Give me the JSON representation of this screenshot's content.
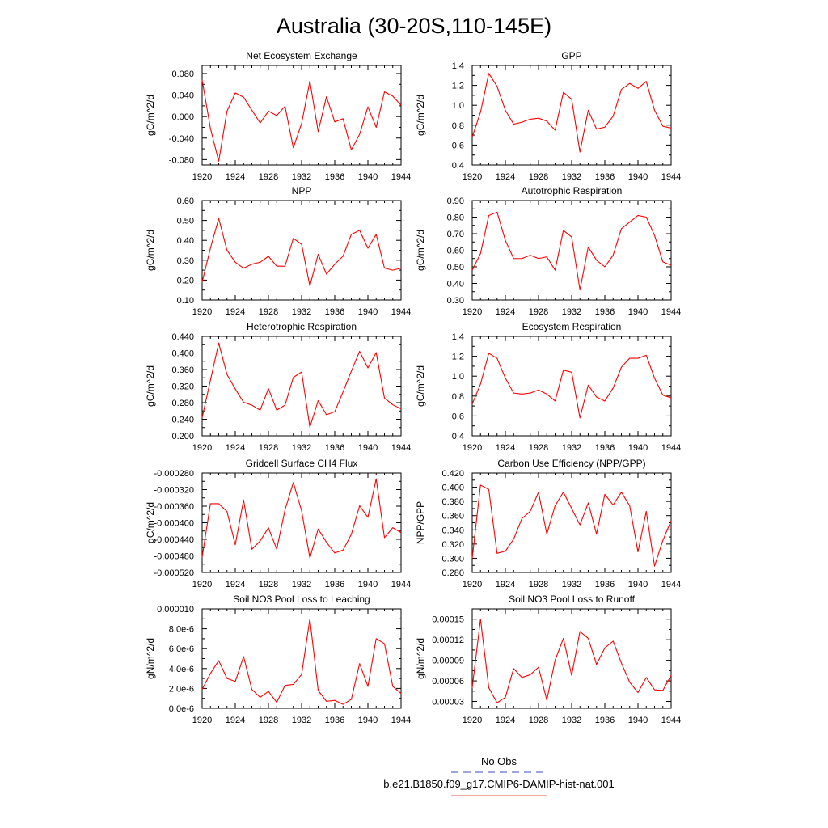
{
  "title": "Australia (30-20S,110-145E)",
  "legend": {
    "entries": [
      {
        "label": "No Obs",
        "color": "#3b4cc0",
        "dash": true
      },
      {
        "label": "b.e21.B1850.f09_g17.CMIP6-DAMIP-hist-nat.001",
        "color": "#e8504a",
        "dash": false
      }
    ]
  },
  "series_color": "#ff0000",
  "chart_data": [
    {
      "type": "line",
      "title": "Net Ecosystem Exchange",
      "ylabel": "gC/m^2/d",
      "x": [
        1920,
        1921,
        1922,
        1923,
        1924,
        1925,
        1926,
        1927,
        1928,
        1929,
        1930,
        1931,
        1932,
        1933,
        1934,
        1935,
        1936,
        1937,
        1938,
        1939,
        1940,
        1941,
        1942,
        1943,
        1944
      ],
      "values": [
        0.068,
        -0.022,
        -0.083,
        0.01,
        0.044,
        0.036,
        0.012,
        -0.012,
        0.01,
        0.002,
        0.019,
        -0.058,
        -0.013,
        0.066,
        -0.028,
        0.037,
        -0.01,
        -0.004,
        -0.062,
        -0.033,
        0.018,
        -0.02,
        0.046,
        0.038,
        0.021
      ],
      "xlim": [
        1920,
        1944
      ],
      "ylim": [
        -0.09,
        0.095
      ],
      "xticks": [
        1920,
        1924,
        1928,
        1932,
        1936,
        1940,
        1944
      ],
      "yticks": [
        -0.08,
        -0.04,
        0,
        0.04,
        0.08
      ],
      "ytick_labels": [
        "-0.080",
        "-0.040",
        "0.000",
        "0.040",
        "0.080"
      ]
    },
    {
      "type": "line",
      "title": "GPP",
      "ylabel": "gC/m^2/d",
      "x": [
        1920,
        1921,
        1922,
        1923,
        1924,
        1925,
        1926,
        1927,
        1928,
        1929,
        1930,
        1931,
        1932,
        1933,
        1934,
        1935,
        1936,
        1937,
        1938,
        1939,
        1940,
        1941,
        1942,
        1943,
        1944
      ],
      "values": [
        0.68,
        0.93,
        1.32,
        1.19,
        0.95,
        0.81,
        0.83,
        0.86,
        0.87,
        0.84,
        0.75,
        1.13,
        1.06,
        0.53,
        0.95,
        0.76,
        0.78,
        0.89,
        1.16,
        1.22,
        1.17,
        1.24,
        0.95,
        0.79,
        0.77
      ],
      "xlim": [
        1920,
        1944
      ],
      "ylim": [
        0.4,
        1.4
      ],
      "xticks": [
        1920,
        1924,
        1928,
        1932,
        1936,
        1940,
        1944
      ],
      "yticks": [
        0.4,
        0.6,
        0.8,
        1.0,
        1.2,
        1.4
      ],
      "ytick_labels": [
        "0.4",
        "0.6",
        "0.8",
        "1.0",
        "1.2",
        "1.4"
      ]
    },
    {
      "type": "line",
      "title": "NPP",
      "ylabel": "gC/m^2/d",
      "x": [
        1920,
        1921,
        1922,
        1923,
        1924,
        1925,
        1926,
        1927,
        1928,
        1929,
        1930,
        1931,
        1932,
        1933,
        1934,
        1935,
        1936,
        1937,
        1938,
        1939,
        1940,
        1941,
        1942,
        1943,
        1944
      ],
      "values": [
        0.19,
        0.36,
        0.51,
        0.35,
        0.29,
        0.26,
        0.28,
        0.29,
        0.32,
        0.27,
        0.27,
        0.41,
        0.38,
        0.17,
        0.33,
        0.23,
        0.28,
        0.32,
        0.43,
        0.45,
        0.36,
        0.43,
        0.26,
        0.25,
        0.26
      ],
      "xlim": [
        1920,
        1944
      ],
      "ylim": [
        0.1,
        0.6
      ],
      "xticks": [
        1920,
        1924,
        1928,
        1932,
        1936,
        1940,
        1944
      ],
      "yticks": [
        0.1,
        0.2,
        0.3,
        0.4,
        0.5,
        0.6
      ],
      "ytick_labels": [
        "0.10",
        "0.20",
        "0.30",
        "0.40",
        "0.50",
        "0.60"
      ]
    },
    {
      "type": "line",
      "title": "Autotrophic Respiration",
      "ylabel": "gC/m^2/d",
      "x": [
        1920,
        1921,
        1922,
        1923,
        1924,
        1925,
        1926,
        1927,
        1928,
        1929,
        1930,
        1931,
        1932,
        1933,
        1934,
        1935,
        1936,
        1937,
        1938,
        1939,
        1940,
        1941,
        1942,
        1943,
        1944
      ],
      "values": [
        0.48,
        0.58,
        0.81,
        0.83,
        0.66,
        0.55,
        0.55,
        0.57,
        0.55,
        0.56,
        0.48,
        0.72,
        0.68,
        0.36,
        0.62,
        0.54,
        0.5,
        0.57,
        0.73,
        0.77,
        0.81,
        0.8,
        0.69,
        0.53,
        0.51
      ],
      "xlim": [
        1920,
        1944
      ],
      "ylim": [
        0.3,
        0.9
      ],
      "xticks": [
        1920,
        1924,
        1928,
        1932,
        1936,
        1940,
        1944
      ],
      "yticks": [
        0.3,
        0.4,
        0.5,
        0.6,
        0.7,
        0.8,
        0.9
      ],
      "ytick_labels": [
        "0.30",
        "0.40",
        "0.50",
        "0.60",
        "0.70",
        "0.80",
        "0.90"
      ]
    },
    {
      "type": "line",
      "title": "Heterotrophic Respiration",
      "ylabel": "gC/m^2/d",
      "x": [
        1920,
        1921,
        1922,
        1923,
        1924,
        1925,
        1926,
        1927,
        1928,
        1929,
        1930,
        1931,
        1932,
        1933,
        1934,
        1935,
        1936,
        1937,
        1938,
        1939,
        1940,
        1941,
        1942,
        1943,
        1944
      ],
      "values": [
        0.244,
        0.334,
        0.424,
        0.348,
        0.313,
        0.281,
        0.274,
        0.262,
        0.314,
        0.262,
        0.274,
        0.341,
        0.354,
        0.221,
        0.285,
        0.251,
        0.258,
        0.306,
        0.356,
        0.404,
        0.364,
        0.401,
        0.291,
        0.275,
        0.265
      ],
      "xlim": [
        1920,
        1944
      ],
      "ylim": [
        0.2,
        0.44
      ],
      "xticks": [
        1920,
        1924,
        1928,
        1932,
        1936,
        1940,
        1944
      ],
      "yticks": [
        0.2,
        0.24,
        0.28,
        0.32,
        0.36,
        0.4,
        0.44
      ],
      "ytick_labels": [
        "0.200",
        "0.240",
        "0.280",
        "0.320",
        "0.360",
        "0.400",
        "0.440"
      ]
    },
    {
      "type": "line",
      "title": "Ecosystem Respiration",
      "ylabel": "gC/m^2/d",
      "x": [
        1920,
        1921,
        1922,
        1923,
        1924,
        1925,
        1926,
        1927,
        1928,
        1929,
        1930,
        1931,
        1932,
        1933,
        1934,
        1935,
        1936,
        1937,
        1938,
        1939,
        1940,
        1941,
        1942,
        1943,
        1944
      ],
      "values": [
        0.72,
        0.92,
        1.23,
        1.18,
        0.98,
        0.83,
        0.82,
        0.83,
        0.86,
        0.82,
        0.75,
        1.06,
        1.04,
        0.58,
        0.91,
        0.79,
        0.75,
        0.88,
        1.09,
        1.18,
        1.18,
        1.21,
        0.98,
        0.81,
        0.78
      ],
      "xlim": [
        1920,
        1944
      ],
      "ylim": [
        0.4,
        1.4
      ],
      "xticks": [
        1920,
        1924,
        1928,
        1932,
        1936,
        1940,
        1944
      ],
      "yticks": [
        0.4,
        0.6,
        0.8,
        1.0,
        1.2,
        1.4
      ],
      "ytick_labels": [
        "0.4",
        "0.6",
        "0.8",
        "1.0",
        "1.2",
        "1.4"
      ]
    },
    {
      "type": "line",
      "title": "Gridcell Surface CH4 Flux",
      "ylabel": "gC/m^2/d",
      "x": [
        1920,
        1921,
        1922,
        1923,
        1924,
        1925,
        1926,
        1927,
        1928,
        1929,
        1930,
        1931,
        1932,
        1933,
        1934,
        1935,
        1936,
        1937,
        1938,
        1939,
        1940,
        1941,
        1942,
        1943,
        1944
      ],
      "values": [
        -0.000483,
        -0.000354,
        -0.000354,
        -0.000373,
        -0.000453,
        -0.000345,
        -0.000464,
        -0.000444,
        -0.000412,
        -0.000464,
        -0.000369,
        -0.000303,
        -0.000371,
        -0.000485,
        -0.000415,
        -0.000447,
        -0.000473,
        -0.000466,
        -0.000428,
        -0.000359,
        -0.000387,
        -0.000294,
        -0.000436,
        -0.000412,
        -0.000424
      ],
      "xlim": [
        1920,
        1944
      ],
      "ylim": [
        -0.00052,
        -0.00028
      ],
      "xticks": [
        1920,
        1924,
        1928,
        1932,
        1936,
        1940,
        1944
      ],
      "yticks": [
        -0.00052,
        -0.00048,
        -0.00044,
        -0.0004,
        -0.00036,
        -0.00032,
        -0.00028
      ],
      "ytick_labels": [
        "-0.000520",
        "-0.000480",
        "-0.000440",
        "-0.000400",
        "-0.000360",
        "-0.000320",
        "-0.000280"
      ]
    },
    {
      "type": "line",
      "title": "Carbon Use Efficiency (NPP/GPP)",
      "ylabel": "NPP/GPP",
      "x": [
        1920,
        1921,
        1922,
        1923,
        1924,
        1925,
        1926,
        1927,
        1928,
        1929,
        1930,
        1931,
        1932,
        1933,
        1934,
        1935,
        1936,
        1937,
        1938,
        1939,
        1940,
        1941,
        1942,
        1943,
        1944
      ],
      "values": [
        0.3,
        0.403,
        0.397,
        0.307,
        0.31,
        0.327,
        0.356,
        0.366,
        0.393,
        0.334,
        0.374,
        0.393,
        0.37,
        0.347,
        0.378,
        0.334,
        0.39,
        0.375,
        0.393,
        0.374,
        0.309,
        0.366,
        0.289,
        0.325,
        0.353
      ],
      "xlim": [
        1920,
        1944
      ],
      "ylim": [
        0.28,
        0.42
      ],
      "xticks": [
        1920,
        1924,
        1928,
        1932,
        1936,
        1940,
        1944
      ],
      "yticks": [
        0.28,
        0.3,
        0.32,
        0.34,
        0.36,
        0.38,
        0.4,
        0.42
      ],
      "ytick_labels": [
        "0.280",
        "0.300",
        "0.320",
        "0.340",
        "0.360",
        "0.380",
        "0.400",
        "0.420"
      ]
    },
    {
      "type": "line",
      "title": "Soil NO3 Pool Loss to Leaching",
      "ylabel": "gN/m^2/d",
      "x": [
        1920,
        1921,
        1922,
        1923,
        1924,
        1925,
        1926,
        1927,
        1928,
        1929,
        1930,
        1931,
        1932,
        1933,
        1934,
        1935,
        1936,
        1937,
        1938,
        1939,
        1940,
        1941,
        1942,
        1943,
        1944
      ],
      "values": [
        1.9e-06,
        3.5e-06,
        4.8e-06,
        3e-06,
        2.7e-06,
        5.2e-06,
        1.9e-06,
        1.1e-06,
        1.7e-06,
        6e-07,
        2.3e-06,
        2.4e-06,
        3.4e-06,
        9e-06,
        1.8e-06,
        7e-07,
        8e-07,
        4e-07,
        9e-07,
        4.5e-06,
        2.2e-06,
        7e-06,
        6.5e-06,
        2.2e-06,
        1.5e-06
      ],
      "xlim": [
        1920,
        1944
      ],
      "ylim": [
        0,
        1e-05
      ],
      "xticks": [
        1920,
        1924,
        1928,
        1932,
        1936,
        1940,
        1944
      ],
      "yticks": [
        0,
        2e-06,
        4e-06,
        6e-06,
        8e-06,
        1e-05
      ],
      "ytick_labels": [
        "0.0e-6",
        "2.0e-6",
        "4.0e-6",
        "6.0e-6",
        "8.0e-6",
        "0.000010"
      ]
    },
    {
      "type": "line",
      "title": "Soil NO3 Pool Loss to Runoff",
      "ylabel": "gN/m^2/d",
      "x": [
        1920,
        1921,
        1922,
        1923,
        1924,
        1925,
        1926,
        1927,
        1928,
        1929,
        1930,
        1931,
        1932,
        1933,
        1934,
        1935,
        1936,
        1937,
        1938,
        1939,
        1940,
        1941,
        1942,
        1943,
        1944
      ],
      "values": [
        5e-05,
        0.00015,
        5e-05,
        2.8e-05,
        3.6e-05,
        7.8e-05,
        6.5e-05,
        6.9e-05,
        8e-05,
        3.2e-05,
        9e-05,
        0.000122,
        6.8e-05,
        0.000132,
        0.000122,
        8.4e-05,
        0.000108,
        0.000118,
        8.6e-05,
        5.8e-05,
        4.3e-05,
        6.5e-05,
        4.7e-05,
        4.6e-05,
        6.8e-05
      ],
      "xlim": [
        1920,
        1944
      ],
      "ylim": [
        2e-05,
        0.000165
      ],
      "xticks": [
        1920,
        1924,
        1928,
        1932,
        1936,
        1940,
        1944
      ],
      "yticks": [
        3e-05,
        6e-05,
        9e-05,
        0.00012,
        0.00015
      ],
      "ytick_labels": [
        "0.00003",
        "0.00006",
        "0.00009",
        "0.00012",
        "0.00015"
      ]
    }
  ]
}
